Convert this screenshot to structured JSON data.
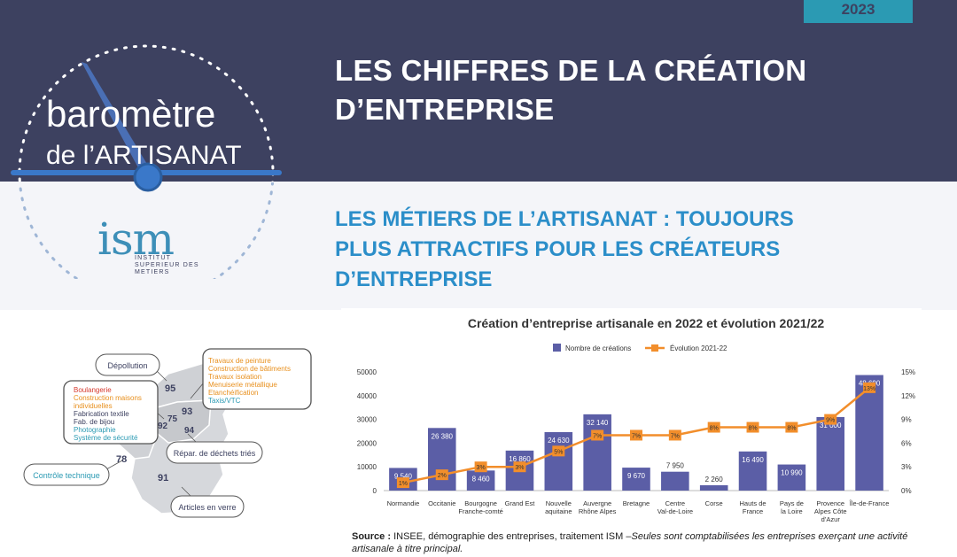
{
  "header": {
    "year": "2023",
    "title_line1": "LES CHIFFRES DE LA CRÉATION",
    "title_line2": "D’ENTREPRISE"
  },
  "logo": {
    "word1": "baromètre",
    "word2": "de l’ARTISANAT",
    "ism": "ism",
    "institut_line1": "INSTITUT",
    "institut_line2": "SUPERIEUR DES",
    "institut_line3": "METIERS"
  },
  "subtitle": {
    "line1": "LES MÉTIERS DE L’ARTISANAT : TOUJOURS",
    "line2": "PLUS ATTRACTIFS POUR LES CRÉATEURS",
    "line3": "D’ENTREPRISE"
  },
  "map": {
    "departments": [
      "95",
      "93",
      "75",
      "92",
      "94",
      "78",
      "91"
    ],
    "callouts": {
      "depollution": "Dépollution",
      "left_box": [
        {
          "text": "Boulangerie",
          "color": "#d63a2f"
        },
        {
          "text": "Construction maisons",
          "color": "#e8901e"
        },
        {
          "text": "individuelles",
          "color": "#e8901e"
        },
        {
          "text": "Fabrication textile",
          "color": "#3d4160"
        },
        {
          "text": "Fab. de bijou",
          "color": "#3d4160"
        },
        {
          "text": "Photographie",
          "color": "#2b9ab3"
        },
        {
          "text": "Système de sécurité",
          "color": "#2b9ab3"
        }
      ],
      "right_box": [
        {
          "text": "Travaux de peinture",
          "color": "#e8901e"
        },
        {
          "text": "Construction de bâtiments",
          "color": "#e8901e"
        },
        {
          "text": "Travaux isolation",
          "color": "#e8901e"
        },
        {
          "text": "Menuiserie métallique",
          "color": "#e8901e"
        },
        {
          "text": "Etanchéification",
          "color": "#e8901e"
        },
        {
          "text": "Taxis/VTC",
          "color": "#2b9ab3"
        }
      ],
      "repar": "Répar. de déchets triés",
      "controle": "Contrôle technique",
      "articles": "Articles en verre"
    }
  },
  "chart_data": {
    "type": "bar",
    "title": "Création d’entreprise artisanale en 2022 et évolution 2021/22",
    "categories": [
      [
        "Normandie"
      ],
      [
        "Occitanie"
      ],
      [
        "Bourgogne",
        "Franche-comté"
      ],
      [
        "Grand Est"
      ],
      [
        "Nouvelle",
        "aquitaine"
      ],
      [
        "Auvergne",
        "Rhône Alpes"
      ],
      [
        "Bretagne"
      ],
      [
        "Centre",
        "Val-de-Loire"
      ],
      [
        "Corse"
      ],
      [
        "Hauts de",
        "France"
      ],
      [
        "Pays de",
        "la Loire"
      ],
      [
        "Provence",
        "Alpes Côte",
        "d’Azur"
      ],
      [
        "Île-de-France"
      ]
    ],
    "series": [
      {
        "name": "Nombre de créations",
        "type": "bar",
        "axis": "left",
        "color": "#5b5ea6",
        "values": [
          9540,
          26380,
          8460,
          16860,
          24630,
          32140,
          9670,
          7950,
          2260,
          16490,
          10990,
          31000,
          48690
        ],
        "labels": [
          "9 540",
          "26 380",
          "8 460",
          "16 860",
          "24 630",
          "32 140",
          "9 670",
          "7 950",
          "2 260",
          "16 490",
          "10 990",
          "31 000",
          "48 690"
        ]
      },
      {
        "name": "Évolution 2021-22",
        "type": "line",
        "axis": "right",
        "color": "#f28e2b",
        "values": [
          1,
          2,
          3,
          3,
          5,
          7,
          7,
          7,
          8,
          8,
          8,
          9,
          13
        ],
        "labels": [
          "1%",
          "2%",
          "3%",
          "3%",
          "5%",
          "7%",
          "7%",
          "7%",
          "8%",
          "8%",
          "8%",
          "9%",
          "13%"
        ]
      }
    ],
    "ylim_left": [
      0,
      50000
    ],
    "yticks_left": [
      "0",
      "10000",
      "20000",
      "30000",
      "40000",
      "50000"
    ],
    "ylim_right": [
      0,
      15
    ],
    "yticks_right": [
      "0%",
      "3%",
      "6%",
      "9%",
      "12%",
      "15%"
    ],
    "legend_position": "top",
    "grid": false
  },
  "source": {
    "label": "Source :",
    "text": " INSEE, démographie des entreprises, traitement ISM –",
    "italic": "Seules sont comptabilisées les entreprises exerçant une activité artisanale à titre principal."
  }
}
